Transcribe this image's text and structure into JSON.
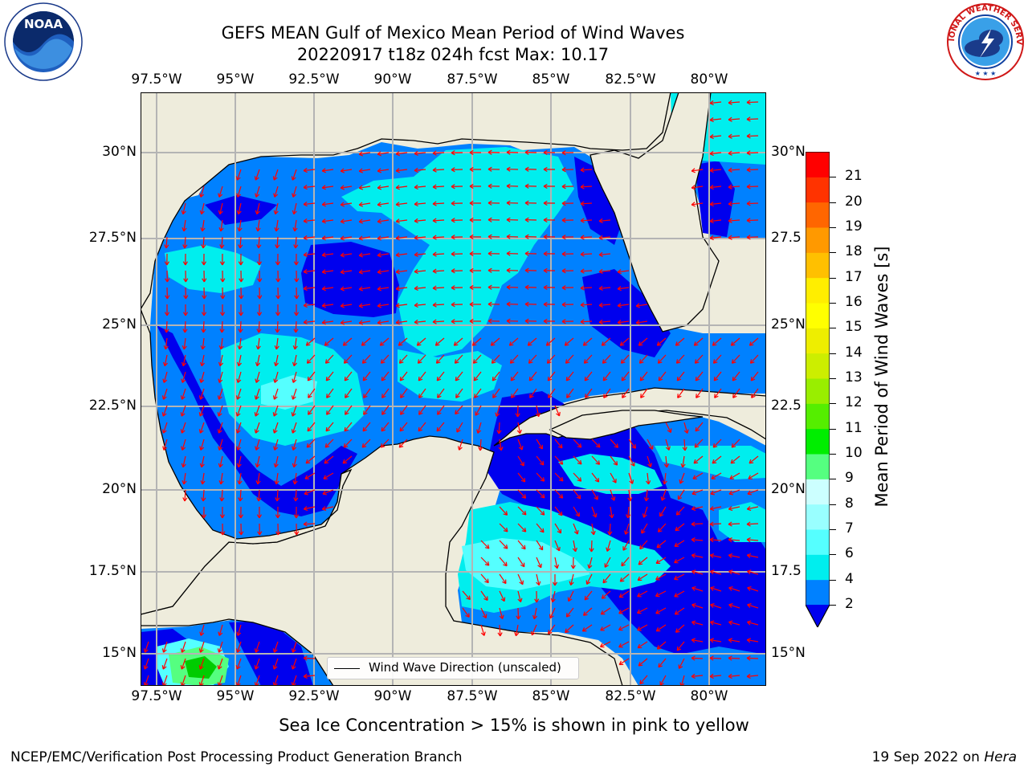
{
  "title": {
    "line1": "GEFS MEAN Gulf of Mexico Mean Period of Wind Waves",
    "line2": "20220917 t18z 024h fcst   Max: 10.17"
  },
  "logos": {
    "left": {
      "text": "NOAA",
      "ring_text": "NATIONAL OCEANIC AND ATMOSPHERIC ADMINISTRATION · U.S. DEPARTMENT OF COMMERCE"
    },
    "right": {
      "ring_text": "NATIONAL WEATHER SERVICE"
    }
  },
  "map": {
    "lon_ticks": [
      "97.5°W",
      "95°W",
      "92.5°W",
      "90°W",
      "87.5°W",
      "85°W",
      "82.5°W",
      "80°W"
    ],
    "lat_ticks_left": [
      "30°N",
      "27.5°N",
      "25°N",
      "22.5°N",
      "20°N",
      "17.5°N",
      "15°N"
    ],
    "lat_ticks_right": [
      "30°N",
      "27.5",
      "25°N",
      "22.5",
      "20°N",
      "17.5",
      "15°N"
    ],
    "legend_label": "Wind Wave Direction (unscaled)",
    "colors": {
      "land": "#eeecdc",
      "ocean_2_4": "#0081ff",
      "ocean_below_2": "#0000ee",
      "ocean_4_6": "#00eeee",
      "ocean_6_8": "#55ffff",
      "ocean_8_10": "#55ff80",
      "arrow": "#ff0000",
      "grid": "#b4b4b4"
    }
  },
  "colorbar": {
    "label": "Mean Period of Wind Waves [s]",
    "ticks": [
      "2",
      "4",
      "6",
      "7",
      "8",
      "9",
      "10",
      "11",
      "12",
      "13",
      "14",
      "15",
      "16",
      "17",
      "18",
      "19",
      "20",
      "21"
    ],
    "colors": [
      "#0081ff",
      "#00eeee",
      "#55ffff",
      "#99ffff",
      "#ccffff",
      "#55ff80",
      "#00ee00",
      "#55ee00",
      "#99ee00",
      "#ccee00",
      "#eeee00",
      "#ffff00",
      "#ffee00",
      "#ffc000",
      "#ff9900",
      "#ff6600",
      "#ff3300",
      "#ff0000"
    ],
    "extend_color": "#0000ee"
  },
  "note": "Sea Ice Concentration > 15% is shown in pink to yellow",
  "footer": {
    "left": "NCEP/EMC/Verification Post Processing Product Generation Branch",
    "right_date": "19 Sep 2022 on",
    "right_host": "Hera"
  }
}
